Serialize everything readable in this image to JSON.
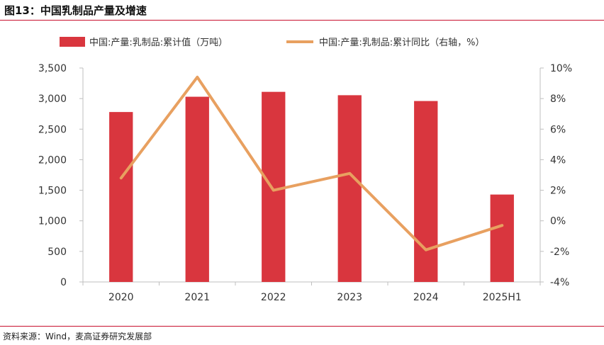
{
  "figure": {
    "title": "图13：中国乳制品产量及增速",
    "source": "资料来源：Wind，麦高证券研究发展部"
  },
  "colors": {
    "bar": "#d9363e",
    "line": "#e8a060",
    "title_rule": "#c8102e",
    "axis": "#bfbfbf",
    "text": "#333333"
  },
  "chart_data": {
    "type": "bar+line",
    "categories": [
      "2020",
      "2021",
      "2022",
      "2023",
      "2024",
      "2025H1"
    ],
    "series": [
      {
        "name": "中国:产量:乳制品:累计值（万吨）",
        "type": "bar",
        "axis": "left",
        "values": [
          2780,
          3030,
          3110,
          3055,
          2960,
          1430
        ]
      },
      {
        "name": "中国:产量:乳制品:累计同比（右轴，%）",
        "type": "line",
        "axis": "right",
        "values": [
          2.8,
          9.4,
          2.0,
          3.1,
          -1.9,
          -0.3
        ]
      }
    ],
    "left_axis": {
      "min": 0,
      "max": 3500,
      "step": 500,
      "tick_labels": [
        "0",
        "500",
        "1,000",
        "1,500",
        "2,000",
        "2,500",
        "3,000",
        "3,500"
      ]
    },
    "right_axis": {
      "min": -4,
      "max": 10,
      "step": 2,
      "tick_labels": [
        "-4%",
        "-2%",
        "0%",
        "2%",
        "4%",
        "6%",
        "8%",
        "10%"
      ]
    },
    "legend_position": "top",
    "grid": false
  }
}
